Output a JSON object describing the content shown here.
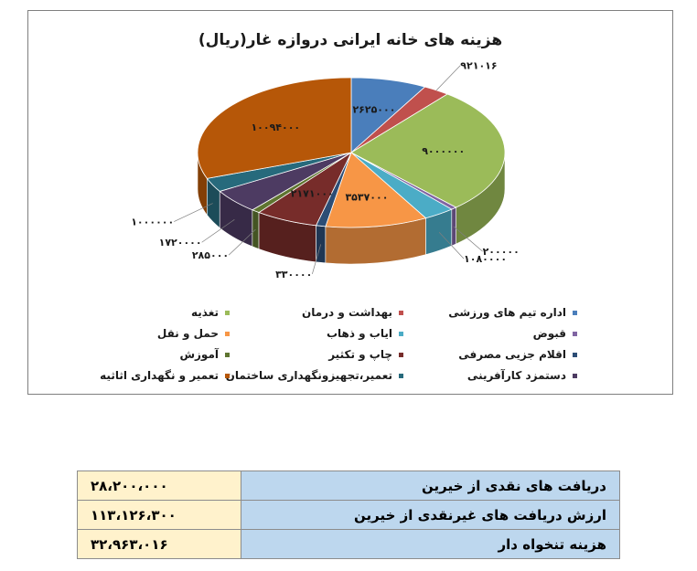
{
  "chart_data": {
    "type": "pie",
    "title": "هزینه های خانه ایرانی دروازه غار(ریال)",
    "slices": [
      {
        "name": "اداره تیم های ورزشی",
        "value": 2625000,
        "label": "۲۶۲۵۰۰۰",
        "color": "#4a7ebb"
      },
      {
        "name": "بهداشت و درمان",
        "value": 921016,
        "label": "۹۲۱۰۱۶",
        "color": "#c0504d"
      },
      {
        "name": "تغذیه",
        "value": 9000000,
        "label": "۹۰۰۰۰۰۰",
        "color": "#9bbb59"
      },
      {
        "name": "قبوض",
        "value": 200000,
        "label": "۲۰۰۰۰۰",
        "color": "#8064a2"
      },
      {
        "name": "ایاب و ذهاب",
        "value": 1080000,
        "label": "۱۰۸۰۰۰۰",
        "color": "#4bacc6"
      },
      {
        "name": "حمل و نقل",
        "value": 3537000,
        "label": "۳۵۳۷۰۰۰",
        "color": "#f79646"
      },
      {
        "name": "اقلام جزیی مصرفی",
        "value": 330000,
        "label": "۳۳۰۰۰۰",
        "color": "#2c4d75"
      },
      {
        "name": "چاپ و تکثیر",
        "value": 2171000,
        "label": "۲۱۷۱۰۰۰",
        "color": "#772c2a"
      },
      {
        "name": "آموزش",
        "value": 285000,
        "label": "۲۸۵۰۰۰",
        "color": "#5f7530"
      },
      {
        "name": "دستمزد کارآفرینی",
        "value": 1720000,
        "label": "۱۷۲۰۰۰۰",
        "color": "#4d3b62"
      },
      {
        "name": "تعمیر،تجهیزونگهداری ساختمان",
        "value": 1000000,
        "label": "۱۰۰۰۰۰۰",
        "color": "#276a7c"
      },
      {
        "name": "تعمیر و نگهداری اثاثیه",
        "value": 10094000,
        "label": "۱۰۰۹۴۰۰۰",
        "color": "#b65708"
      }
    ],
    "legend_position": "bottom"
  },
  "table": {
    "rows": [
      {
        "label": "دریافت های نقدی از خیرین",
        "value": "۲۸،۲۰۰،۰۰۰"
      },
      {
        "label": "ارزش دریافت های غیرنقدی از خیرین",
        "value": "۱۱۳،۱۲۶،۳۰۰"
      },
      {
        "label": "هزینه تنخواه دار",
        "value": "۳۲،۹۶۳،۰۱۶"
      }
    ]
  }
}
